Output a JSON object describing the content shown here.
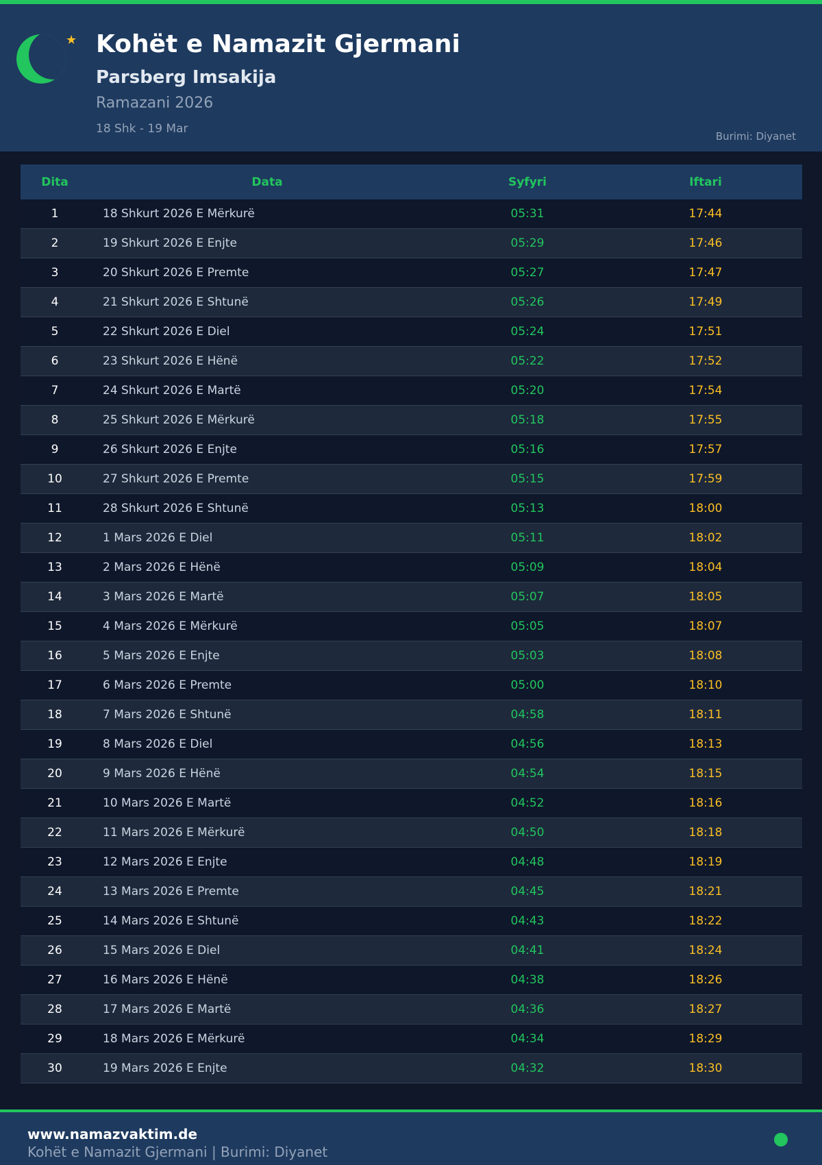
{
  "header": {
    "title": "Kohët e Namazit Gjermani",
    "subtitle": "Parsberg Imsakija",
    "period": "Ramazani 2026",
    "range": "18 Shk - 19 Mar",
    "source": "Burimi: Diyanet"
  },
  "table": {
    "columns": [
      "Dita",
      "Data",
      "Syfyri",
      "Iftari"
    ],
    "rows": [
      [
        "1",
        "18 Shkurt 2026 E Mërkurë",
        "05:31",
        "17:44"
      ],
      [
        "2",
        "19 Shkurt 2026 E Enjte",
        "05:29",
        "17:46"
      ],
      [
        "3",
        "20 Shkurt 2026 E Premte",
        "05:27",
        "17:47"
      ],
      [
        "4",
        "21 Shkurt 2026 E Shtunë",
        "05:26",
        "17:49"
      ],
      [
        "5",
        "22 Shkurt 2026 E Diel",
        "05:24",
        "17:51"
      ],
      [
        "6",
        "23 Shkurt 2026 E Hënë",
        "05:22",
        "17:52"
      ],
      [
        "7",
        "24 Shkurt 2026 E Martë",
        "05:20",
        "17:54"
      ],
      [
        "8",
        "25 Shkurt 2026 E Mërkurë",
        "05:18",
        "17:55"
      ],
      [
        "9",
        "26 Shkurt 2026 E Enjte",
        "05:16",
        "17:57"
      ],
      [
        "10",
        "27 Shkurt 2026 E Premte",
        "05:15",
        "17:59"
      ],
      [
        "11",
        "28 Shkurt 2026 E Shtunë",
        "05:13",
        "18:00"
      ],
      [
        "12",
        "1 Mars 2026 E Diel",
        "05:11",
        "18:02"
      ],
      [
        "13",
        "2 Mars 2026 E Hënë",
        "05:09",
        "18:04"
      ],
      [
        "14",
        "3 Mars 2026 E Martë",
        "05:07",
        "18:05"
      ],
      [
        "15",
        "4 Mars 2026 E Mërkurë",
        "05:05",
        "18:07"
      ],
      [
        "16",
        "5 Mars 2026 E Enjte",
        "05:03",
        "18:08"
      ],
      [
        "17",
        "6 Mars 2026 E Premte",
        "05:00",
        "18:10"
      ],
      [
        "18",
        "7 Mars 2026 E Shtunë",
        "04:58",
        "18:11"
      ],
      [
        "19",
        "8 Mars 2026 E Diel",
        "04:56",
        "18:13"
      ],
      [
        "20",
        "9 Mars 2026 E Hënë",
        "04:54",
        "18:15"
      ],
      [
        "21",
        "10 Mars 2026 E Martë",
        "04:52",
        "18:16"
      ],
      [
        "22",
        "11 Mars 2026 E Mërkurë",
        "04:50",
        "18:18"
      ],
      [
        "23",
        "12 Mars 2026 E Enjte",
        "04:48",
        "18:19"
      ],
      [
        "24",
        "13 Mars 2026 E Premte",
        "04:45",
        "18:21"
      ],
      [
        "25",
        "14 Mars 2026 E Shtunë",
        "04:43",
        "18:22"
      ],
      [
        "26",
        "15 Mars 2026 E Diel",
        "04:41",
        "18:24"
      ],
      [
        "27",
        "16 Mars 2026 E Hënë",
        "04:38",
        "18:26"
      ],
      [
        "28",
        "17 Mars 2026 E Martë",
        "04:36",
        "18:27"
      ],
      [
        "29",
        "18 Mars 2026 E Mërkurë",
        "04:34",
        "18:29"
      ],
      [
        "30",
        "19 Mars 2026 E Enjte",
        "04:32",
        "18:30"
      ]
    ]
  },
  "footer": {
    "site": "www.namazvaktim.de",
    "text": "Kohët e Namazit Gjermani | Burimi: Diyanet"
  },
  "colors": {
    "accent": "#22c55e",
    "iftar": "#fbbf24",
    "header_bg": "#1e3a5f"
  },
  "icons": {
    "logo": "crescent-moon-icon",
    "star": "star-icon"
  }
}
